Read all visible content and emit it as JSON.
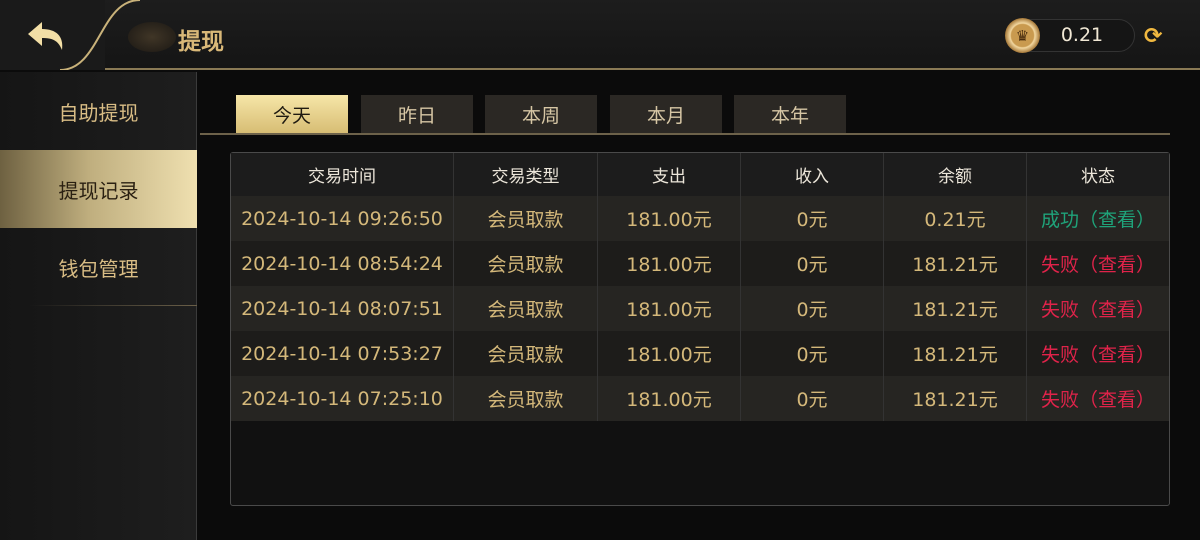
{
  "header": {
    "title": "提现",
    "balance": "0.21"
  },
  "sidebar": {
    "items": [
      {
        "label": "自助提现"
      },
      {
        "label": "提现记录",
        "active": true
      },
      {
        "label": "钱包管理"
      }
    ]
  },
  "tabs": [
    {
      "label": "今天",
      "active": true
    },
    {
      "label": "昨日"
    },
    {
      "label": "本周"
    },
    {
      "label": "本月"
    },
    {
      "label": "本年"
    }
  ],
  "table": {
    "columns": [
      "交易时间",
      "交易类型",
      "支出",
      "收入",
      "余额",
      "状态"
    ],
    "rows": [
      {
        "time": "2024-10-14 09:26:50",
        "type": "会员取款",
        "out": "181.00元",
        "in": "0元",
        "balance": "0.21元",
        "status": "成功（查看）",
        "status_kind": "success"
      },
      {
        "time": "2024-10-14 08:54:24",
        "type": "会员取款",
        "out": "181.00元",
        "in": "0元",
        "balance": "181.21元",
        "status": "失败（查看）",
        "status_kind": "fail"
      },
      {
        "time": "2024-10-14 08:07:51",
        "type": "会员取款",
        "out": "181.00元",
        "in": "0元",
        "balance": "181.21元",
        "status": "失败（查看）",
        "status_kind": "fail"
      },
      {
        "time": "2024-10-14 07:53:27",
        "type": "会员取款",
        "out": "181.00元",
        "in": "0元",
        "balance": "181.21元",
        "status": "失败（查看）",
        "status_kind": "fail"
      },
      {
        "time": "2024-10-14 07:25:10",
        "type": "会员取款",
        "out": "181.00元",
        "in": "0元",
        "balance": "181.21元",
        "status": "失败（查看）",
        "status_kind": "fail"
      }
    ]
  },
  "colors": {
    "gold": "#d4b87a",
    "success": "#1fa37a",
    "fail": "#e0234a"
  }
}
